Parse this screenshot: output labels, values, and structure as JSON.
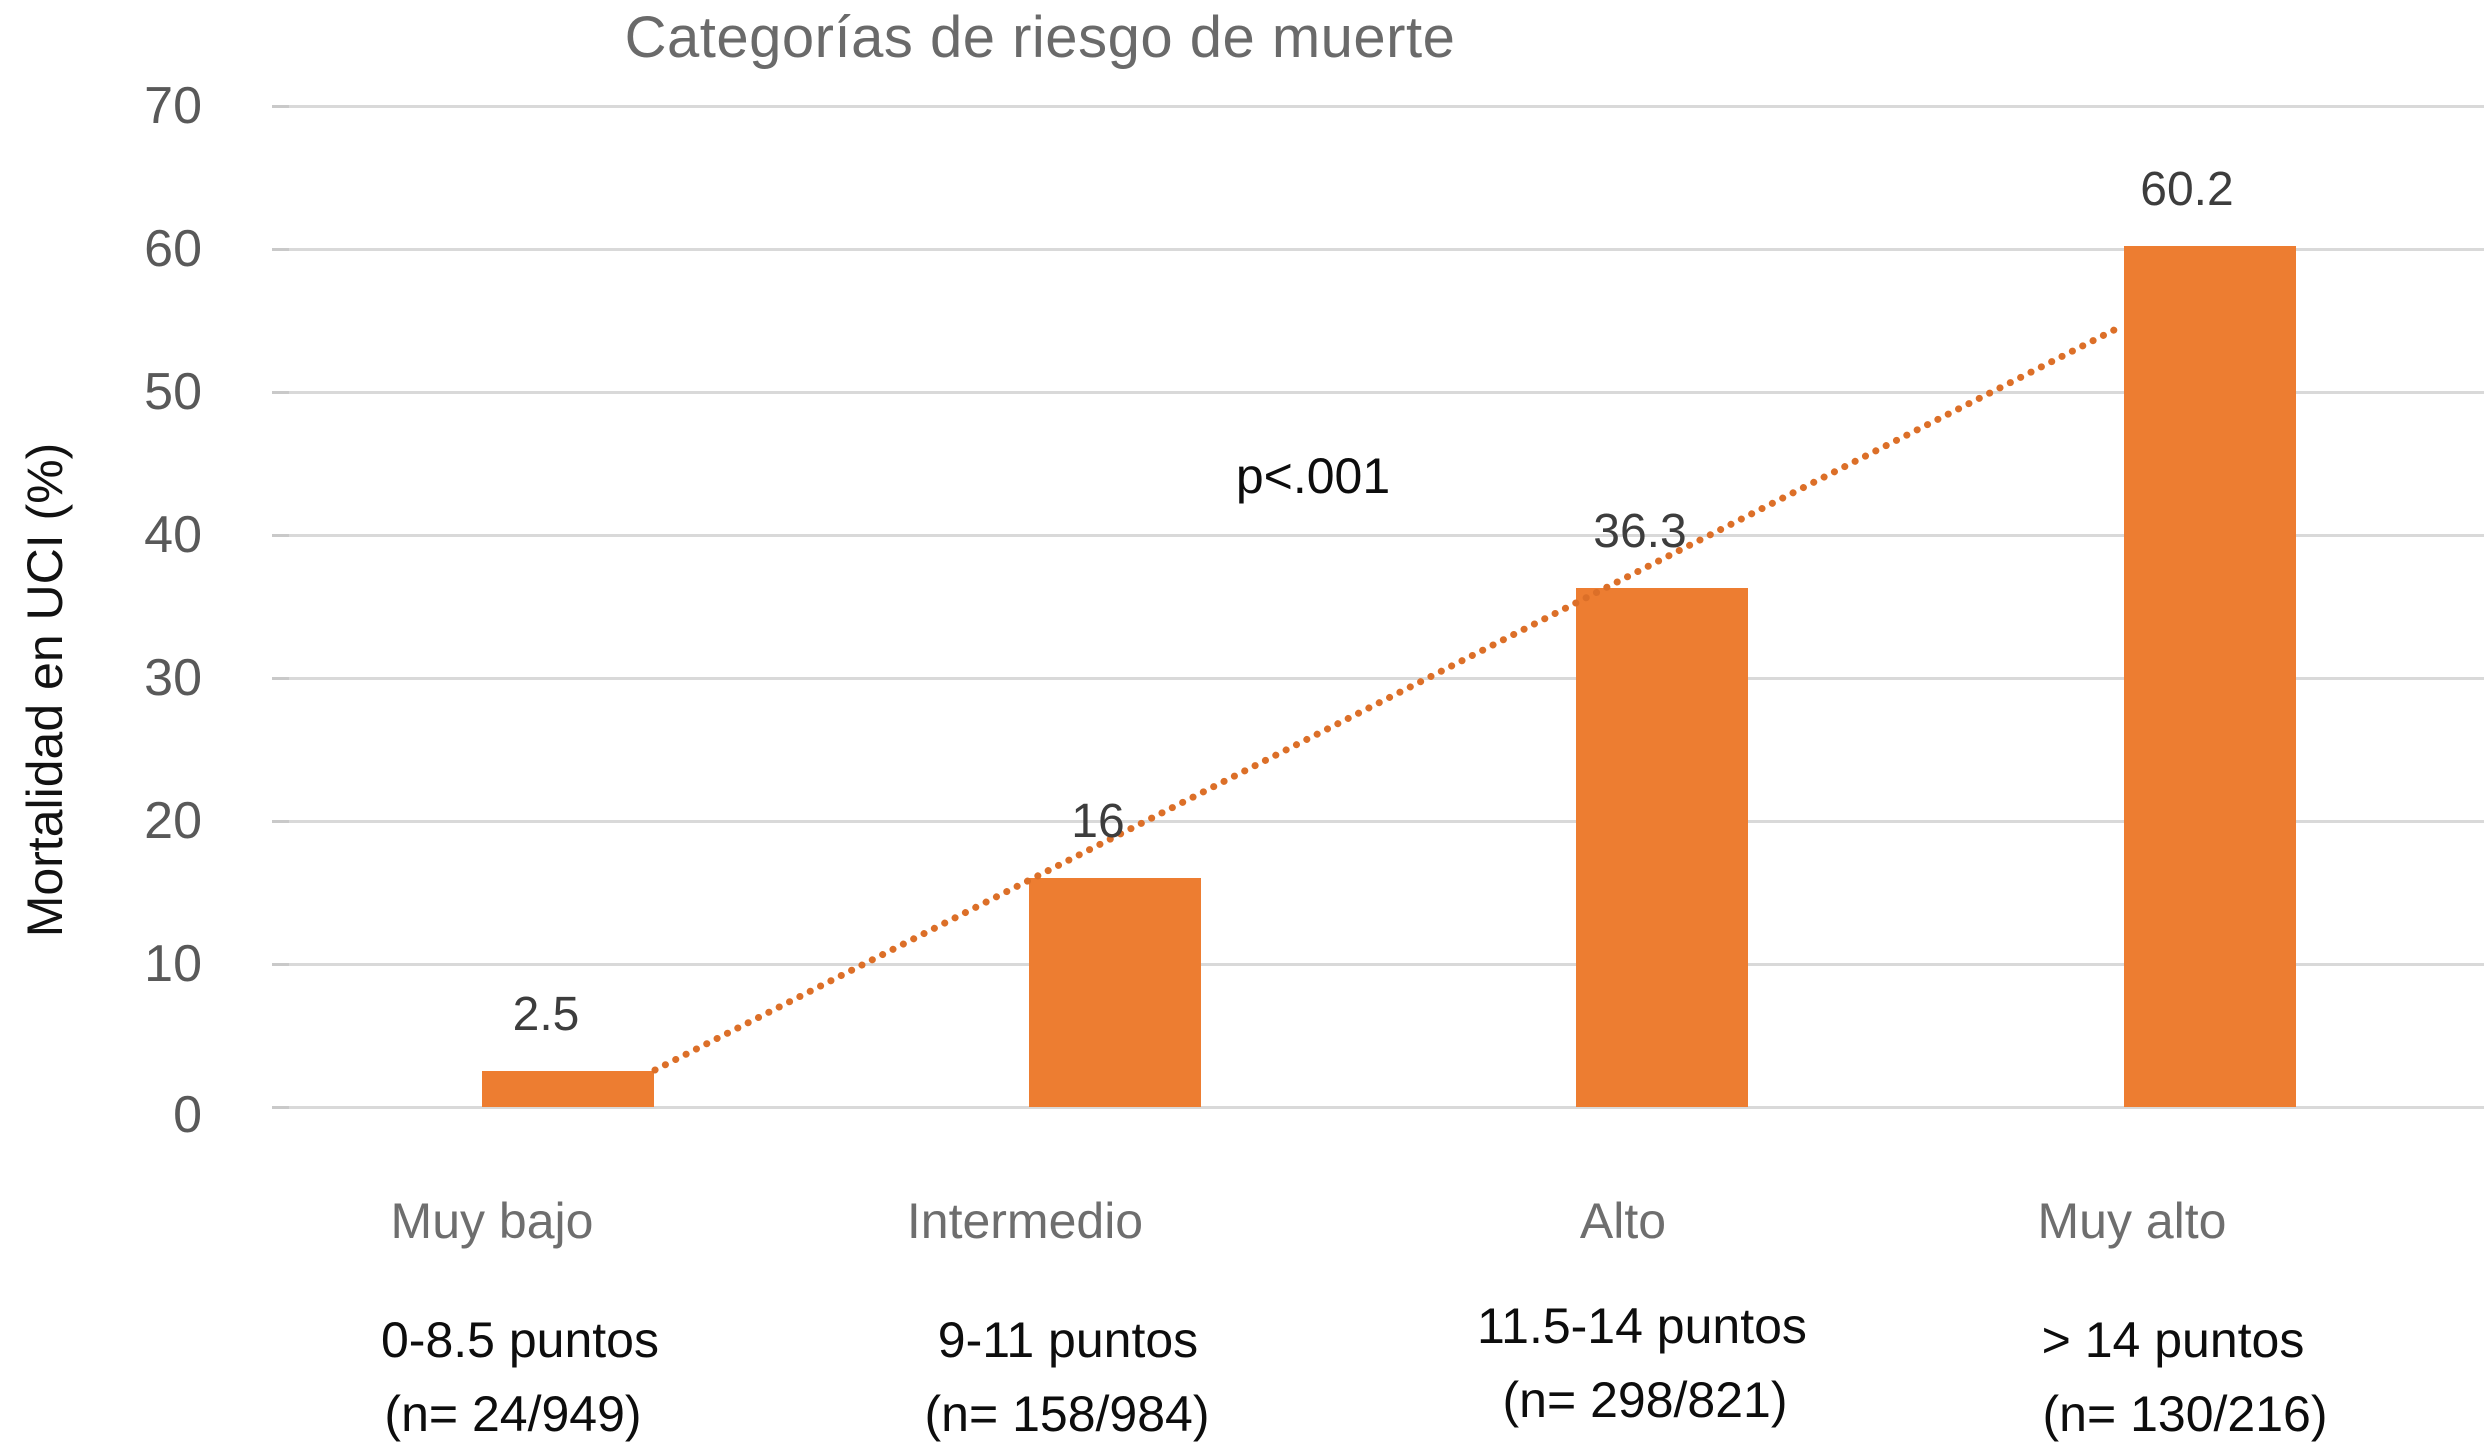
{
  "title": "Categorías de riesgo de muerte",
  "annotation": "p<.001",
  "y_axis": {
    "label": "Mortalidad en UCI (%)",
    "ticks": [
      "0",
      "10",
      "20",
      "30",
      "40",
      "50",
      "60",
      "70"
    ]
  },
  "colors": {
    "bar": "#ED7D31",
    "trendline": "#DC6F28",
    "gridline": "#D9D9D9",
    "title_text": "#6A6A6A",
    "tick_text": "#595959",
    "category_text": "#6E6E6E",
    "value_text": "#3D3D3D",
    "black_text": "#0D0D0D"
  },
  "chart_data": {
    "type": "bar",
    "title": "Categorías de riesgo de muerte",
    "xlabel": "",
    "ylabel": "Mortalidad en UCI (%)",
    "ylim": [
      0,
      70
    ],
    "y_ticks": [
      0,
      10,
      20,
      30,
      40,
      50,
      60,
      70
    ],
    "grid": true,
    "legend": "none",
    "categories": [
      "Muy bajo",
      "Intermedio",
      "Alto",
      "Muy alto"
    ],
    "values": [
      2.5,
      16,
      36.3,
      60.2
    ],
    "value_labels": [
      "2.5",
      "16",
      "36.3",
      "60.2"
    ],
    "category_ranges": [
      "0-8.5 puntos",
      "9-11 puntos",
      "11.5-14 puntos",
      "> 14 puntos"
    ],
    "category_counts": [
      "(n= 24/949)",
      "(n= 158/984)",
      "(n= 298/821)",
      "(n= 130/216)"
    ],
    "annotation": "p<.001",
    "trendline": {
      "style": "dotted",
      "from_value": 2.5,
      "to_value": 55,
      "color": "#DC6F28"
    },
    "bar_color": "#ED7D31"
  }
}
